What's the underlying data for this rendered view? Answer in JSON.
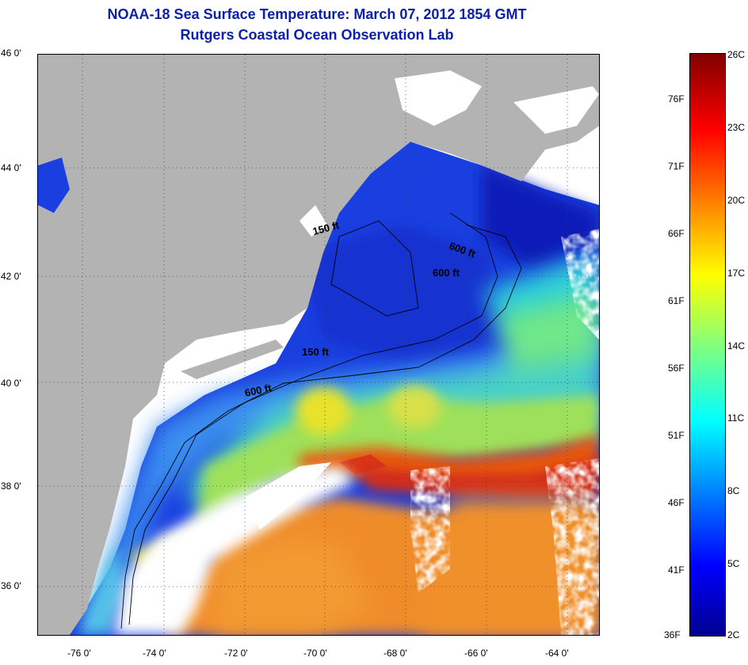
{
  "title": {
    "line1": "NOAA-18 Sea Surface Temperature:  March 07, 2012 1854 GMT",
    "line2": "Rutgers Coastal Ocean Observation Lab"
  },
  "colors": {
    "title": "#0b1fa8",
    "land": "#b3b3b3",
    "cloud": "#ffffff"
  },
  "map": {
    "lat_range": [
      35,
      46.2
    ],
    "lon_range": [
      -77,
      -62.9
    ],
    "lat_ticks": [
      "46 0'",
      "44 0'",
      "42 0'",
      "40 0'",
      "38 0'",
      "36 0'"
    ],
    "lon_ticks": [
      "-76 0'",
      "-74 0'",
      "-72 0'",
      "-70 0'",
      "-68 0'",
      "-66 0'",
      "-64 0'"
    ],
    "grid": "dotted",
    "contour_labels": [
      "150 ft",
      "600 ft",
      "600 ft",
      "150 ft",
      "600 ft"
    ]
  },
  "colorbar": {
    "range_c": [
      2,
      26
    ],
    "range_f": [
      36,
      79
    ],
    "fahrenheit_labels": [
      "76F",
      "71F",
      "66F",
      "61F",
      "56F",
      "51F",
      "46F",
      "41F",
      "36F"
    ],
    "celsius_labels": [
      "26C",
      "23C",
      "20C",
      "17C",
      "14C",
      "11C",
      "8C",
      "5C",
      "2C"
    ]
  }
}
